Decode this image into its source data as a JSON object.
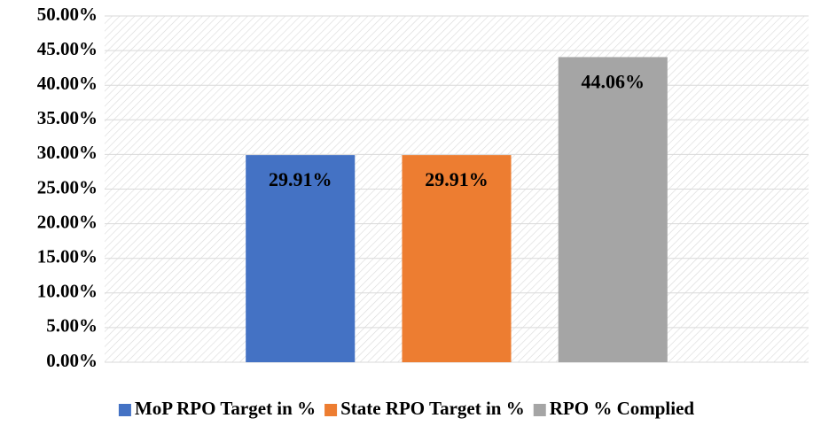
{
  "chart_data": {
    "type": "bar",
    "categories": [
      null
    ],
    "series": [
      {
        "name": "MoP RPO Target in %",
        "color": "#4472c4",
        "values": [
          29.91
        ],
        "value_labels": [
          "29.91%"
        ]
      },
      {
        "name": "State RPO Target in %",
        "color": "#ed7d31",
        "values": [
          29.91
        ],
        "value_labels": [
          "29.91%"
        ]
      },
      {
        "name": "RPO % Complied",
        "color": "#a5a5a5",
        "values": [
          44.06
        ],
        "value_labels": [
          "44.06%"
        ]
      }
    ],
    "ylim": [
      0,
      50
    ],
    "yticks": [
      {
        "value": 0,
        "label": "0.00%"
      },
      {
        "value": 5,
        "label": "5.00%"
      },
      {
        "value": 10,
        "label": "10.00%"
      },
      {
        "value": 15,
        "label": "15.00%"
      },
      {
        "value": 20,
        "label": "20.00%"
      },
      {
        "value": 25,
        "label": "25.00%"
      },
      {
        "value": 30,
        "label": "30.00%"
      },
      {
        "value": 35,
        "label": "35.00%"
      },
      {
        "value": 40,
        "label": "40.00%"
      },
      {
        "value": 45,
        "label": "45.00%"
      },
      {
        "value": 50,
        "label": "50.00%"
      }
    ],
    "grid": true,
    "legend": "bottom"
  }
}
